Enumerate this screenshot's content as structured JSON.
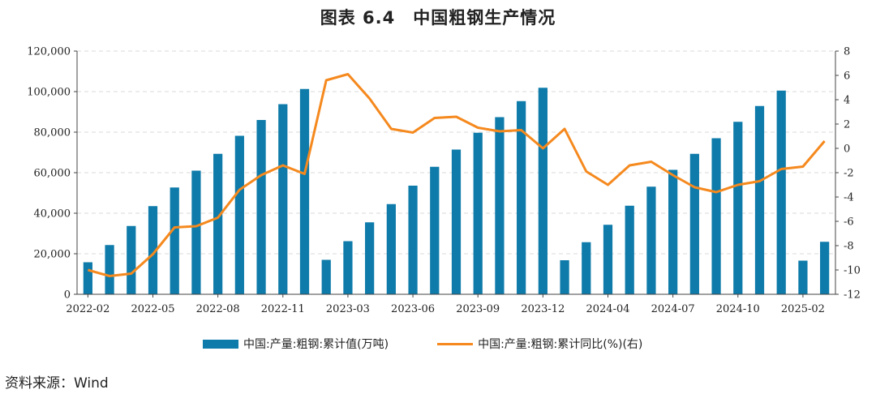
{
  "title": "图表 6.4　中国粗钢生产情况",
  "source": "资料来源：Wind",
  "chart_data": {
    "type": "bar+line",
    "x": [
      "2022-02",
      "2022-03",
      "2022-04",
      "2022-05",
      "2022-06",
      "2022-07",
      "2022-08",
      "2022-09",
      "2022-10",
      "2022-11",
      "2022-12",
      "2023-02",
      "2023-03",
      "2023-04",
      "2023-05",
      "2023-06",
      "2023-07",
      "2023-08",
      "2023-09",
      "2023-10",
      "2023-11",
      "2023-12",
      "2024-02",
      "2024-03",
      "2024-04",
      "2024-05",
      "2024-06",
      "2024-07",
      "2024-08",
      "2024-09",
      "2024-10",
      "2024-11",
      "2024-12",
      "2025-02",
      "2025-03"
    ],
    "x_tick_labels": [
      "2022-02",
      "2022-05",
      "2022-08",
      "2022-11",
      "2023-03",
      "2023-06",
      "2023-09",
      "2023-12",
      "2024-04",
      "2024-07",
      "2024-10",
      "2025-02"
    ],
    "series": [
      {
        "name": "中国:产量:粗钢:累计值(万吨)",
        "type": "bar",
        "axis": "left",
        "color": "#0E7BAA",
        "values": [
          15800,
          24300,
          33700,
          43500,
          52700,
          61000,
          69300,
          78200,
          86000,
          93800,
          101300,
          17000,
          26200,
          35500,
          44500,
          53600,
          62900,
          71400,
          79700,
          87400,
          95300,
          101900,
          16800,
          25700,
          34300,
          43700,
          53100,
          61400,
          69300,
          77000,
          85100,
          92900,
          100500,
          16600,
          25900
        ]
      },
      {
        "name": "中国:产量:粗钢:累计同比(%)(右)",
        "type": "line",
        "axis": "right",
        "color": "#F5891E",
        "values": [
          -10.0,
          -10.5,
          -10.3,
          -8.7,
          -6.5,
          -6.4,
          -5.7,
          -3.4,
          -2.2,
          -1.4,
          -2.1,
          5.6,
          6.1,
          4.1,
          1.6,
          1.3,
          2.5,
          2.6,
          1.7,
          1.4,
          1.5,
          0.0,
          1.6,
          -1.9,
          -3.0,
          -1.4,
          -1.1,
          -2.2,
          -3.2,
          -3.6,
          -3.0,
          -2.7,
          -1.7,
          -1.5,
          0.6
        ]
      }
    ],
    "ylim_left": [
      0,
      120000
    ],
    "ylim_right": [
      -12,
      8
    ],
    "yticks_left": [
      "0",
      "20,000",
      "40,000",
      "60,000",
      "80,000",
      "100,000",
      "120,000"
    ],
    "yticks_right": [
      "-12",
      "-10",
      "-8",
      "-6",
      "-4",
      "-2",
      "0",
      "2",
      "4",
      "6",
      "8"
    ],
    "grid": "horizontal dashed",
    "legend_position": "bottom"
  }
}
